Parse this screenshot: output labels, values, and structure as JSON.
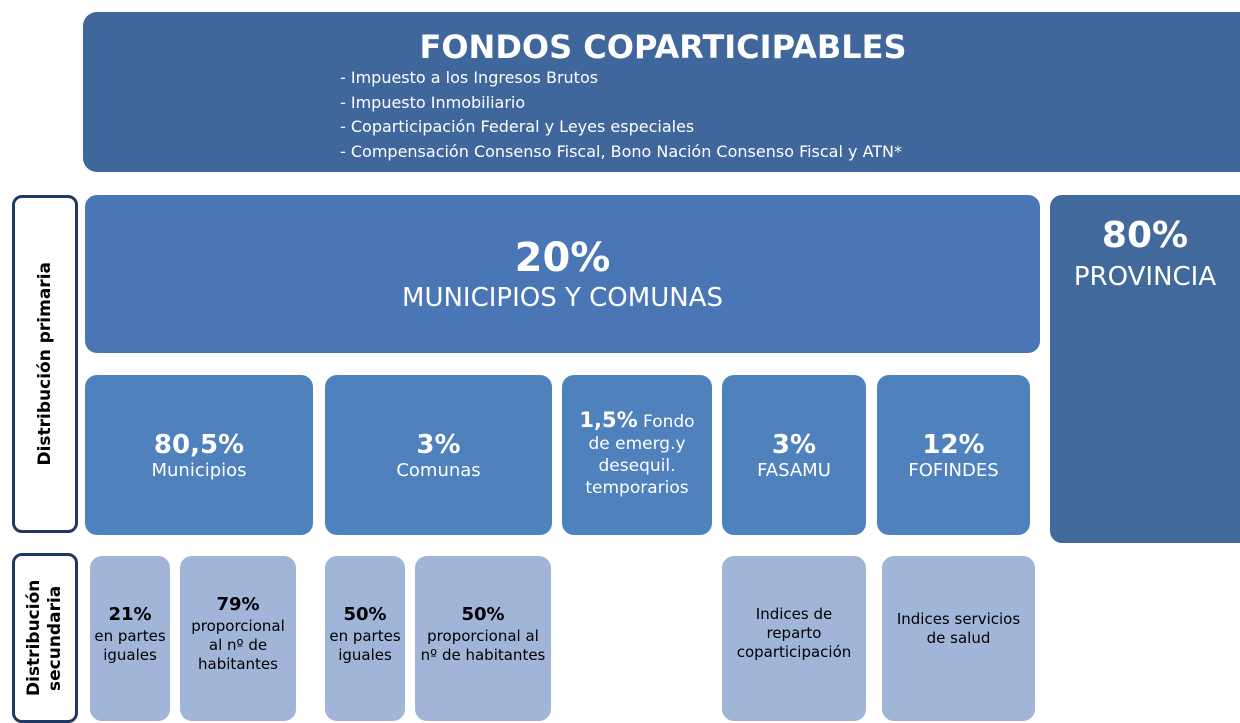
{
  "header": {
    "title": "FONDOS COPARTICIPABLES",
    "items": [
      "- Impuesto a los Ingresos Brutos",
      "- Impuesto Inmobiliario",
      "- Coparticipación Federal y Leyes especiales",
      "- Compensación Consenso Fiscal, Bono Nación Consenso Fiscal y ATN*"
    ]
  },
  "side_labels": [
    "Distribución primaria",
    "Distribución secundaria"
  ],
  "primary": {
    "percent": "20%",
    "label": "MUNICIPIOS Y COMUNAS"
  },
  "province": {
    "percent": "80%",
    "label": "PROVINCIA"
  },
  "funds": [
    {
      "percent": "80,5%",
      "label": "Municipios"
    },
    {
      "percent": "3%",
      "label": "Comunas"
    },
    {
      "percent": "1,5%",
      "label": "Fondo de emerg.y desequil. temporarios"
    },
    {
      "percent": "3%",
      "label": "FASAMU"
    },
    {
      "percent": "12%",
      "label": "FOFINDES"
    }
  ],
  "secondary": [
    {
      "percent": "21%",
      "label": "en partes iguales"
    },
    {
      "percent": "79%",
      "label": "proporcional al nº de habitantes"
    },
    {
      "percent": "50%",
      "label": "en partes iguales"
    },
    {
      "percent": "50%",
      "label": "proporcional al nº de habitantes"
    },
    {
      "label": "Indices de reparto coparticipación"
    },
    {
      "label": "Indices servicios de salud"
    }
  ]
}
